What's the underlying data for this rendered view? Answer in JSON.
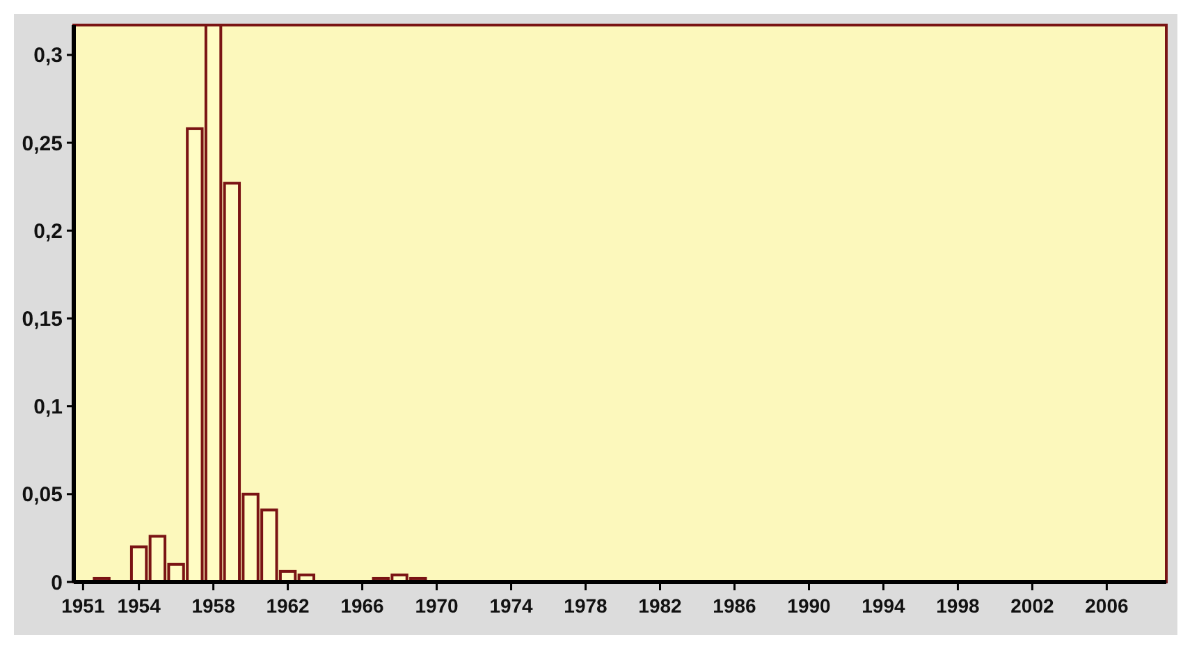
{
  "chart_data": {
    "type": "bar",
    "x": [
      1952,
      1954,
      1955,
      1956,
      1957,
      1958,
      1959,
      1960,
      1961,
      1962,
      1963,
      1967,
      1968,
      1969
    ],
    "values": [
      0.002,
      0.02,
      0.026,
      0.01,
      0.258,
      0.317,
      0.227,
      0.05,
      0.041,
      0.006,
      0.004,
      0.002,
      0.004,
      0.002
    ],
    "color": "#fffcc4",
    "xlim": [
      1950.5,
      2009.2
    ],
    "xticks": [
      1951,
      1954,
      1958,
      1962,
      1966,
      1970,
      1974,
      1978,
      1982,
      1986,
      1990,
      1994,
      1998,
      2002,
      2006
    ],
    "ylim": [
      0,
      0.317
    ],
    "yticks": [
      {
        "value": 0,
        "label": "0"
      },
      {
        "value": 0.05,
        "label": "0,05"
      },
      {
        "value": 0.1,
        "label": "0,1"
      },
      {
        "value": 0.15,
        "label": "0,15"
      },
      {
        "value": 0.2,
        "label": "0,2"
      },
      {
        "value": 0.25,
        "label": "0,25"
      },
      {
        "value": 0.3,
        "label": "0,3"
      }
    ],
    "grid": false
  }
}
